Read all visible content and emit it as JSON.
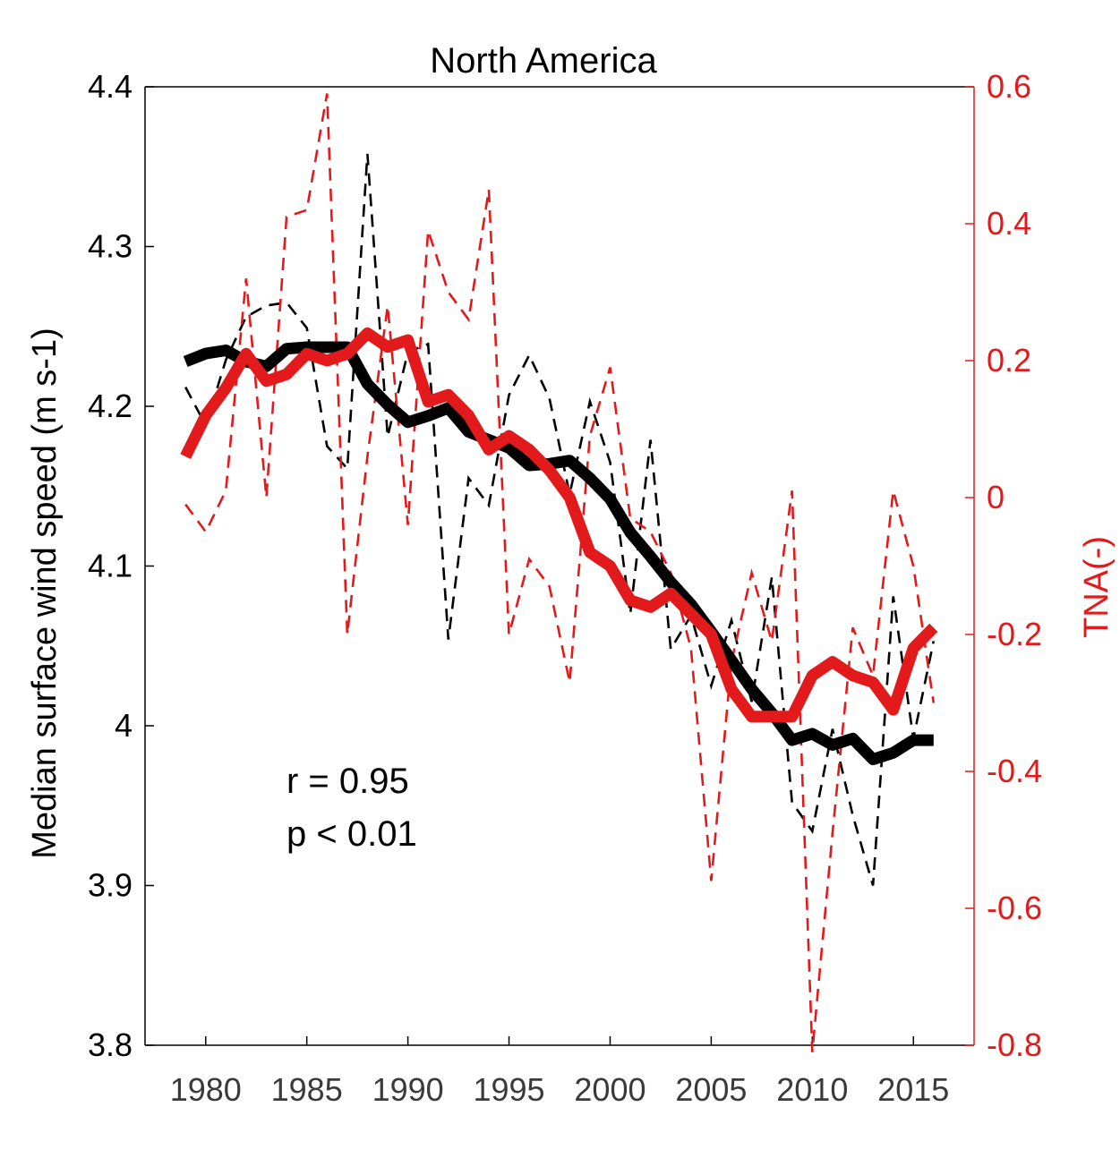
{
  "chart_data": {
    "type": "line",
    "title": "North America",
    "ylabel": "Median surface wind speed (m s-1)",
    "ylabel_right": "TNA(-)",
    "xlim": [
      1977,
      2018
    ],
    "ylim": [
      3.8,
      4.4
    ],
    "ylim_right": [
      -0.8,
      0.6
    ],
    "x_ticks": [
      "1980",
      "1985",
      "1990",
      "1995",
      "2000",
      "2005",
      "2010",
      "2015"
    ],
    "y_ticks": [
      "3.8",
      "3.9",
      "4",
      "4.1",
      "4.2",
      "4.3",
      "4.4"
    ],
    "y_ticks_right": [
      "-0.8",
      "-0.6",
      "-0.4",
      "-0.2",
      "0",
      "0.2",
      "0.4",
      "0.6"
    ],
    "annotations": [
      "r = 0.95",
      "p < 0.01"
    ],
    "grid": false,
    "colors": {
      "wind": "#000000",
      "tna": "#e31a1c"
    },
    "series": [
      {
        "axis": "left",
        "style": "solid-thick",
        "color": "#000000",
        "x": [
          1979,
          1980,
          1981,
          1982,
          1983,
          1984,
          1985,
          1986,
          1987,
          1988,
          1989,
          1990,
          1991,
          1992,
          1993,
          1994,
          1995,
          1996,
          1997,
          1998,
          1999,
          2000,
          2001,
          2002,
          2003,
          2004,
          2005,
          2006,
          2007,
          2008,
          2009,
          2010,
          2011,
          2012,
          2013,
          2014,
          2015,
          2016
        ],
        "values": [
          4.228,
          4.233,
          4.235,
          4.228,
          4.225,
          4.236,
          4.237,
          4.237,
          4.237,
          4.214,
          4.201,
          4.19,
          4.194,
          4.199,
          4.184,
          4.179,
          4.174,
          4.163,
          4.164,
          4.166,
          4.155,
          4.142,
          4.121,
          4.106,
          4.09,
          4.076,
          4.059,
          4.041,
          4.023,
          4.008,
          3.991,
          3.995,
          3.988,
          3.992,
          3.979,
          3.983,
          3.991,
          3.991
        ]
      },
      {
        "axis": "left",
        "style": "dashed-thin",
        "color": "#000000",
        "x": [
          1979,
          1980,
          1981,
          1982,
          1983,
          1984,
          1985,
          1986,
          1987,
          1988,
          1989,
          1990,
          1991,
          1992,
          1993,
          1994,
          1995,
          1996,
          1997,
          1998,
          1999,
          2000,
          2001,
          2002,
          2003,
          2004,
          2005,
          2006,
          2007,
          2008,
          2009,
          2010,
          2011,
          2012,
          2013,
          2014,
          2015,
          2016
        ],
        "values": [
          4.212,
          4.188,
          4.229,
          4.256,
          4.263,
          4.265,
          4.249,
          4.175,
          4.161,
          4.358,
          4.181,
          4.234,
          4.239,
          4.054,
          4.155,
          4.138,
          4.207,
          4.232,
          4.205,
          4.145,
          4.203,
          4.165,
          4.07,
          4.179,
          4.048,
          4.069,
          4.025,
          4.066,
          4.015,
          4.093,
          3.952,
          3.934,
          3.998,
          3.944,
          3.9,
          4.081,
          3.992,
          4.053
        ]
      },
      {
        "axis": "right",
        "style": "solid-thick",
        "color": "#e31a1c",
        "x": [
          1979,
          1980,
          1981,
          1982,
          1983,
          1984,
          1985,
          1986,
          1987,
          1988,
          1989,
          1990,
          1991,
          1992,
          1993,
          1994,
          1995,
          1996,
          1997,
          1998,
          1999,
          2000,
          2001,
          2002,
          2003,
          2004,
          2005,
          2006,
          2007,
          2008,
          2009,
          2010,
          2011,
          2012,
          2013,
          2014,
          2015,
          2016
        ],
        "values": [
          0.06,
          0.12,
          0.16,
          0.21,
          0.17,
          0.18,
          0.21,
          0.2,
          0.21,
          0.24,
          0.22,
          0.23,
          0.14,
          0.15,
          0.12,
          0.07,
          0.09,
          0.07,
          0.04,
          0.0,
          -0.08,
          -0.1,
          -0.15,
          -0.16,
          -0.14,
          -0.17,
          -0.2,
          -0.28,
          -0.32,
          -0.32,
          -0.32,
          -0.26,
          -0.24,
          -0.26,
          -0.27,
          -0.31,
          -0.22,
          -0.19
        ]
      },
      {
        "axis": "right",
        "style": "dashed-thin",
        "color": "#e31a1c",
        "x": [
          1979,
          1980,
          1981,
          1982,
          1983,
          1984,
          1985,
          1986,
          1987,
          1988,
          1989,
          1990,
          1991,
          1992,
          1993,
          1994,
          1995,
          1996,
          1997,
          1998,
          1999,
          2000,
          2001,
          2002,
          2003,
          2004,
          2005,
          2006,
          2007,
          2008,
          2009,
          2010,
          2011,
          2012,
          2013,
          2014,
          2015,
          2016
        ],
        "values": [
          -0.01,
          -0.05,
          0.01,
          0.32,
          0.0,
          0.41,
          0.42,
          0.59,
          -0.2,
          0.06,
          0.28,
          -0.04,
          0.39,
          0.3,
          0.26,
          0.45,
          -0.2,
          -0.09,
          -0.13,
          -0.27,
          0.09,
          0.19,
          -0.03,
          -0.05,
          -0.11,
          -0.22,
          -0.56,
          -0.24,
          -0.11,
          -0.21,
          0.01,
          -0.81,
          -0.49,
          -0.19,
          -0.26,
          0.01,
          -0.1,
          -0.3
        ]
      }
    ]
  }
}
